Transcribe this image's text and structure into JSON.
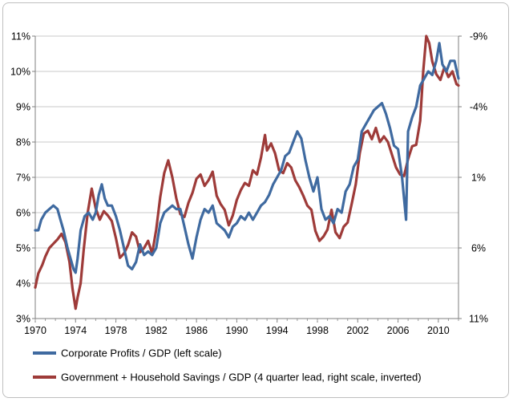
{
  "chart_data": {
    "type": "line",
    "title": "",
    "xlabel": "",
    "ylabel": "",
    "grid": true,
    "legend_position": "bottom",
    "xlim": [
      1970,
      2012
    ],
    "x_ticks": [
      "1970",
      "1974",
      "1978",
      "1982",
      "1986",
      "1990",
      "1994",
      "1998",
      "2002",
      "2006",
      "2010"
    ],
    "y_left": {
      "range": [
        3,
        11
      ],
      "ticks": [
        "3%",
        "4%",
        "5%",
        "6%",
        "7%",
        "8%",
        "9%",
        "10%",
        "11%"
      ]
    },
    "y_right": {
      "inverted": true,
      "range": [
        -9,
        11
      ],
      "ticks": [
        "-9%",
        "-4%",
        "1%",
        "6%",
        "11%"
      ]
    },
    "series": [
      {
        "name": "Corporate Profits / GDP (left scale)",
        "color": "#3f6aa0",
        "axis": "left",
        "points": [
          [
            1970.0,
            5.5
          ],
          [
            1970.3,
            5.5
          ],
          [
            1970.6,
            5.8
          ],
          [
            1971.0,
            6.0
          ],
          [
            1971.4,
            6.1
          ],
          [
            1971.8,
            6.2
          ],
          [
            1972.2,
            6.1
          ],
          [
            1972.5,
            5.8
          ],
          [
            1972.8,
            5.5
          ],
          [
            1973.2,
            5.0
          ],
          [
            1973.5,
            4.7
          ],
          [
            1973.8,
            4.4
          ],
          [
            1974.0,
            4.3
          ],
          [
            1974.2,
            4.7
          ],
          [
            1974.5,
            5.5
          ],
          [
            1974.9,
            5.9
          ],
          [
            1975.3,
            6.0
          ],
          [
            1975.7,
            5.8
          ],
          [
            1976.0,
            6.0
          ],
          [
            1976.3,
            6.5
          ],
          [
            1976.6,
            6.8
          ],
          [
            1976.9,
            6.4
          ],
          [
            1977.2,
            6.2
          ],
          [
            1977.6,
            6.2
          ],
          [
            1978.0,
            5.9
          ],
          [
            1978.4,
            5.5
          ],
          [
            1978.8,
            5.0
          ],
          [
            1979.2,
            4.5
          ],
          [
            1979.6,
            4.4
          ],
          [
            1980.0,
            4.6
          ],
          [
            1980.4,
            5.1
          ],
          [
            1980.8,
            4.8
          ],
          [
            1981.2,
            4.9
          ],
          [
            1981.6,
            4.8
          ],
          [
            1982.0,
            5.0
          ],
          [
            1982.4,
            5.7
          ],
          [
            1982.8,
            6.0
          ],
          [
            1983.2,
            6.1
          ],
          [
            1983.6,
            6.2
          ],
          [
            1984.0,
            6.1
          ],
          [
            1984.4,
            6.1
          ],
          [
            1984.8,
            5.6
          ],
          [
            1985.2,
            5.1
          ],
          [
            1985.6,
            4.7
          ],
          [
            1986.0,
            5.3
          ],
          [
            1986.4,
            5.8
          ],
          [
            1986.8,
            6.1
          ],
          [
            1987.2,
            6.0
          ],
          [
            1987.6,
            6.2
          ],
          [
            1988.0,
            5.7
          ],
          [
            1988.4,
            5.6
          ],
          [
            1988.8,
            5.5
          ],
          [
            1989.2,
            5.3
          ],
          [
            1989.6,
            5.6
          ],
          [
            1990.0,
            5.7
          ],
          [
            1990.4,
            5.9
          ],
          [
            1990.8,
            5.8
          ],
          [
            1991.2,
            6.0
          ],
          [
            1991.6,
            5.8
          ],
          [
            1992.0,
            6.0
          ],
          [
            1992.4,
            6.2
          ],
          [
            1992.8,
            6.3
          ],
          [
            1993.2,
            6.5
          ],
          [
            1993.6,
            6.8
          ],
          [
            1994.0,
            7.0
          ],
          [
            1994.4,
            7.2
          ],
          [
            1994.8,
            7.6
          ],
          [
            1995.2,
            7.7
          ],
          [
            1995.6,
            8.0
          ],
          [
            1996.0,
            8.3
          ],
          [
            1996.4,
            8.1
          ],
          [
            1996.8,
            7.5
          ],
          [
            1997.2,
            7.0
          ],
          [
            1997.6,
            6.6
          ],
          [
            1998.0,
            7.0
          ],
          [
            1998.4,
            6.1
          ],
          [
            1998.8,
            5.8
          ],
          [
            1999.2,
            5.9
          ],
          [
            1999.6,
            5.7
          ],
          [
            2000.0,
            6.1
          ],
          [
            2000.4,
            6.0
          ],
          [
            2000.8,
            6.6
          ],
          [
            2001.2,
            6.8
          ],
          [
            2001.6,
            7.3
          ],
          [
            2002.0,
            7.5
          ],
          [
            2002.4,
            8.3
          ],
          [
            2002.8,
            8.5
          ],
          [
            2003.2,
            8.7
          ],
          [
            2003.6,
            8.9
          ],
          [
            2004.0,
            9.0
          ],
          [
            2004.4,
            9.1
          ],
          [
            2004.8,
            8.8
          ],
          [
            2005.2,
            8.4
          ],
          [
            2005.6,
            7.9
          ],
          [
            2006.0,
            7.8
          ],
          [
            2006.4,
            7.0
          ],
          [
            2006.8,
            5.8
          ],
          [
            2007.0,
            8.3
          ],
          [
            2007.4,
            8.7
          ],
          [
            2007.8,
            9.0
          ],
          [
            2008.2,
            9.6
          ],
          [
            2008.6,
            9.8
          ],
          [
            2009.0,
            10.0
          ],
          [
            2009.4,
            9.9
          ],
          [
            2009.8,
            10.3
          ],
          [
            2010.1,
            10.8
          ],
          [
            2010.4,
            10.2
          ],
          [
            2010.8,
            10.0
          ],
          [
            2011.2,
            10.3
          ],
          [
            2011.6,
            10.3
          ],
          [
            2012.0,
            9.8
          ]
        ]
      },
      {
        "name": "Government + Household Savings / GDP (4 quarter lead, right scale, inverted)",
        "color": "#9e3b39",
        "axis": "right",
        "points": [
          [
            1970.0,
            8.8
          ],
          [
            1970.3,
            7.8
          ],
          [
            1970.7,
            7.2
          ],
          [
            1971.0,
            6.6
          ],
          [
            1971.4,
            6.0
          ],
          [
            1971.8,
            5.7
          ],
          [
            1972.2,
            5.4
          ],
          [
            1972.6,
            5.0
          ],
          [
            1973.0,
            5.6
          ],
          [
            1973.4,
            7.0
          ],
          [
            1973.7,
            8.9
          ],
          [
            1974.0,
            10.3
          ],
          [
            1974.2,
            9.5
          ],
          [
            1974.5,
            8.5
          ],
          [
            1974.8,
            6.2
          ],
          [
            1975.2,
            3.5
          ],
          [
            1975.6,
            1.8
          ],
          [
            1976.0,
            3.2
          ],
          [
            1976.4,
            4.0
          ],
          [
            1976.8,
            3.4
          ],
          [
            1977.2,
            3.7
          ],
          [
            1977.6,
            4.1
          ],
          [
            1978.0,
            5.3
          ],
          [
            1978.4,
            6.7
          ],
          [
            1978.8,
            6.4
          ],
          [
            1979.2,
            5.8
          ],
          [
            1979.6,
            4.9
          ],
          [
            1980.0,
            5.2
          ],
          [
            1980.4,
            6.3
          ],
          [
            1980.8,
            6.0
          ],
          [
            1981.2,
            5.5
          ],
          [
            1981.6,
            6.4
          ],
          [
            1982.0,
            4.7
          ],
          [
            1982.4,
            2.4
          ],
          [
            1982.8,
            0.7
          ],
          [
            1983.2,
            -0.2
          ],
          [
            1983.6,
            1.0
          ],
          [
            1984.0,
            2.5
          ],
          [
            1984.4,
            3.6
          ],
          [
            1984.8,
            3.8
          ],
          [
            1985.2,
            2.8
          ],
          [
            1985.6,
            2.1
          ],
          [
            1986.0,
            1.1
          ],
          [
            1986.4,
            0.8
          ],
          [
            1986.8,
            1.6
          ],
          [
            1987.2,
            1.2
          ],
          [
            1987.6,
            0.6
          ],
          [
            1988.0,
            2.3
          ],
          [
            1988.4,
            2.9
          ],
          [
            1988.8,
            3.3
          ],
          [
            1989.2,
            4.4
          ],
          [
            1989.6,
            3.7
          ],
          [
            1990.0,
            2.6
          ],
          [
            1990.4,
            1.9
          ],
          [
            1990.8,
            1.4
          ],
          [
            1991.2,
            1.6
          ],
          [
            1991.6,
            0.5
          ],
          [
            1992.0,
            0.8
          ],
          [
            1992.4,
            -0.4
          ],
          [
            1992.8,
            -2.0
          ],
          [
            1993.0,
            -0.9
          ],
          [
            1993.4,
            -1.4
          ],
          [
            1993.8,
            -0.7
          ],
          [
            1994.2,
            0.5
          ],
          [
            1994.6,
            0.7
          ],
          [
            1995.0,
            0.0
          ],
          [
            1995.4,
            0.3
          ],
          [
            1995.8,
            1.2
          ],
          [
            1996.2,
            1.7
          ],
          [
            1996.6,
            2.3
          ],
          [
            1997.0,
            3.0
          ],
          [
            1997.4,
            3.3
          ],
          [
            1997.8,
            4.8
          ],
          [
            1998.2,
            5.5
          ],
          [
            1998.6,
            5.2
          ],
          [
            1999.0,
            4.7
          ],
          [
            1999.4,
            3.3
          ],
          [
            1999.8,
            4.9
          ],
          [
            2000.2,
            5.3
          ],
          [
            2000.6,
            4.5
          ],
          [
            2001.0,
            4.2
          ],
          [
            2001.4,
            2.9
          ],
          [
            2001.8,
            1.5
          ],
          [
            2002.2,
            -0.7
          ],
          [
            2002.6,
            -2.1
          ],
          [
            2003.0,
            -2.3
          ],
          [
            2003.4,
            -1.7
          ],
          [
            2003.8,
            -2.5
          ],
          [
            2004.2,
            -1.5
          ],
          [
            2004.6,
            -1.9
          ],
          [
            2005.0,
            -1.5
          ],
          [
            2005.4,
            -0.6
          ],
          [
            2005.8,
            0.3
          ],
          [
            2006.2,
            0.8
          ],
          [
            2006.6,
            0.9
          ],
          [
            2007.0,
            -0.3
          ],
          [
            2007.4,
            -1.2
          ],
          [
            2007.8,
            -1.3
          ],
          [
            2008.2,
            -3.0
          ],
          [
            2008.5,
            -6.5
          ],
          [
            2008.8,
            -9.0
          ],
          [
            2009.1,
            -8.5
          ],
          [
            2009.4,
            -7.2
          ],
          [
            2009.8,
            -6.3
          ],
          [
            2010.2,
            -5.9
          ],
          [
            2010.6,
            -6.8
          ],
          [
            2011.0,
            -6.1
          ],
          [
            2011.4,
            -6.5
          ],
          [
            2011.8,
            -5.6
          ],
          [
            2012.0,
            -5.5
          ]
        ]
      }
    ]
  }
}
